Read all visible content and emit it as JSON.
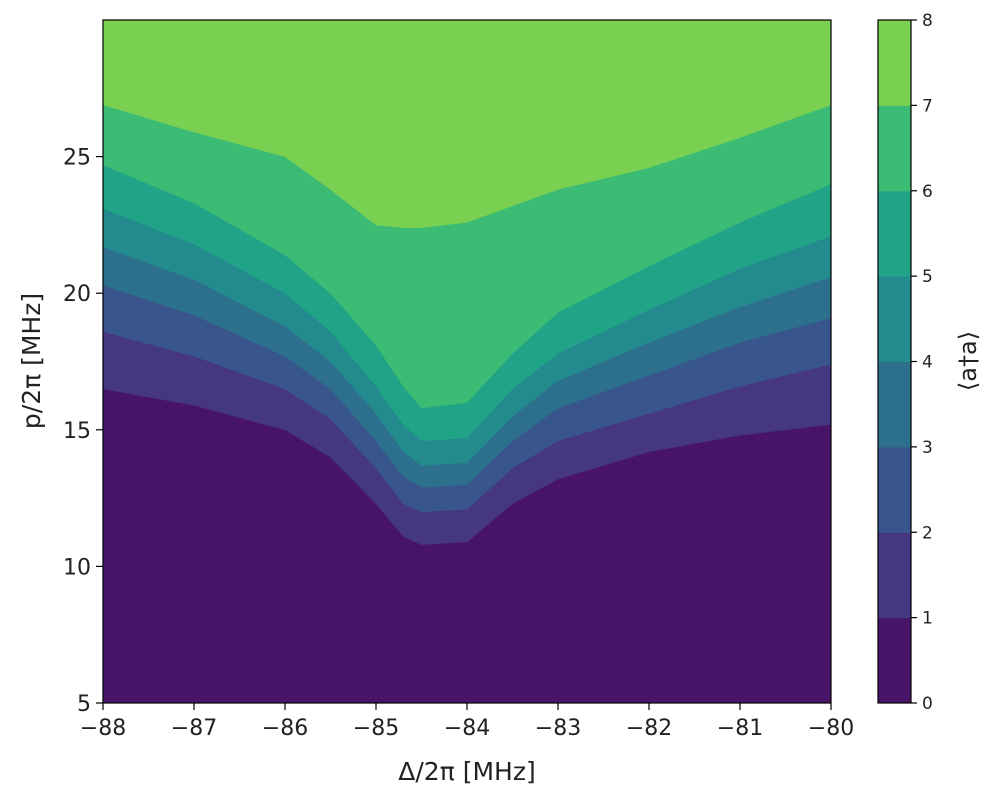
{
  "chart_data": {
    "type": "contour",
    "xlabel": "Δ/2π [MHz]",
    "ylabel": "p/2π [MHz]",
    "colorbar_label": "⟨a†a⟩",
    "xlim": [
      -88,
      -80
    ],
    "ylim": [
      5,
      30
    ],
    "x_ticks": [
      -88,
      -87,
      -86,
      -85,
      -84,
      -83,
      -82,
      -81,
      -80
    ],
    "x_tick_labels": [
      "−88",
      "−87",
      "−86",
      "−85",
      "−84",
      "−83",
      "−82",
      "−81",
      "−80"
    ],
    "y_ticks": [
      5,
      10,
      15,
      20,
      25
    ],
    "y_tick_labels": [
      "5",
      "10",
      "15",
      "20",
      "25"
    ],
    "levels": [
      0,
      1,
      2,
      3,
      4,
      5,
      6,
      7,
      8
    ],
    "level_labels": [
      "0",
      "1",
      "2",
      "3",
      "4",
      "5",
      "6",
      "7",
      "8"
    ],
    "level_colors": [
      "#481467",
      "#453781",
      "#39568c",
      "#2d708e",
      "#238a8d",
      "#20a386",
      "#3cbb75",
      "#7ad151",
      "#dde318"
    ],
    "boundaries_x": [
      -88,
      -87,
      -86,
      -85.5,
      -85,
      -84.7,
      -84.5,
      -84,
      -83.5,
      -83,
      -82,
      -81,
      -80
    ],
    "boundaries": [
      {
        "level": 1,
        "y": [
          16.5,
          15.9,
          15.0,
          14.0,
          12.3,
          11.1,
          10.8,
          10.9,
          12.3,
          13.2,
          14.2,
          14.8,
          15.2
        ]
      },
      {
        "level": 2,
        "y": [
          18.6,
          17.7,
          16.5,
          15.4,
          13.6,
          12.3,
          12.0,
          12.1,
          13.6,
          14.6,
          15.6,
          16.6,
          17.4
        ]
      },
      {
        "level": 3,
        "y": [
          20.3,
          19.2,
          17.7,
          16.5,
          14.6,
          13.3,
          12.9,
          13.0,
          14.6,
          15.8,
          17.0,
          18.2,
          19.1
        ]
      },
      {
        "level": 4,
        "y": [
          21.7,
          20.5,
          18.8,
          17.5,
          15.6,
          14.2,
          13.7,
          13.8,
          15.5,
          16.8,
          18.2,
          19.5,
          20.6
        ]
      },
      {
        "level": 5,
        "y": [
          23.1,
          21.8,
          20.0,
          18.6,
          16.6,
          15.2,
          14.6,
          14.7,
          16.5,
          17.8,
          19.4,
          20.9,
          22.1
        ]
      },
      {
        "level": 6,
        "y": [
          24.7,
          23.3,
          21.4,
          20.0,
          18.1,
          16.6,
          15.8,
          16.0,
          17.8,
          19.3,
          21.0,
          22.6,
          24.0
        ]
      },
      {
        "level": 7,
        "y": [
          26.9,
          25.9,
          25.0,
          23.8,
          22.5,
          22.4,
          22.4,
          22.6,
          23.2,
          23.8,
          24.6,
          25.7,
          26.9
        ]
      }
    ]
  }
}
